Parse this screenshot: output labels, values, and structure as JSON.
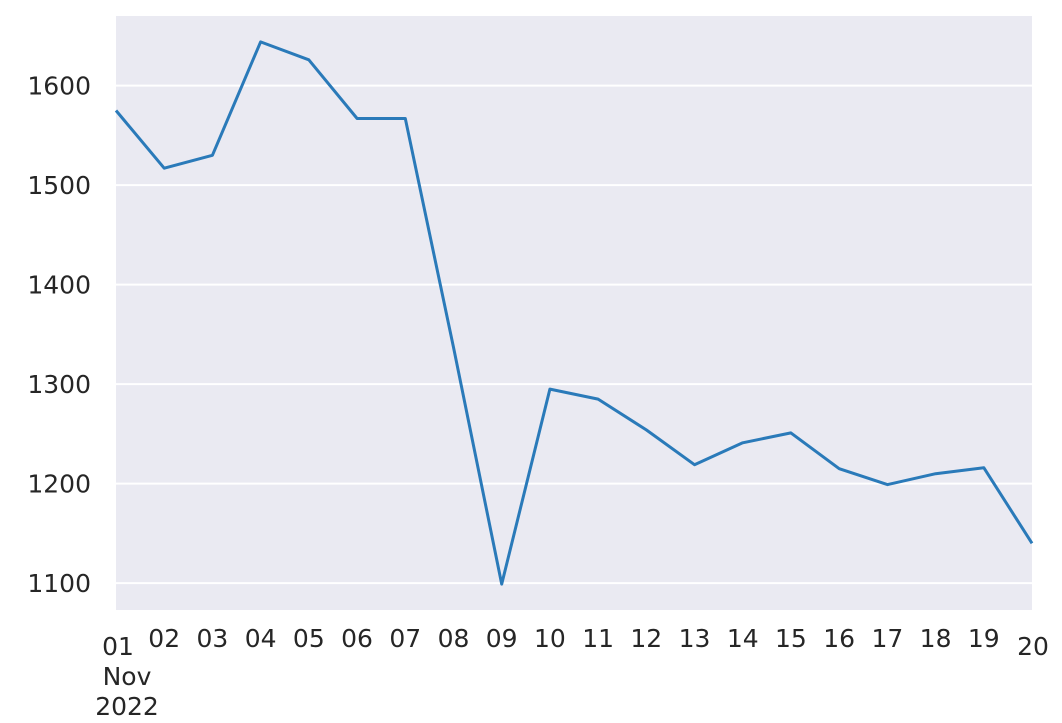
{
  "chart_data": {
    "type": "line",
    "title": "",
    "xlabel": "",
    "ylabel": "",
    "x": [
      "2022-11-01",
      "2022-11-02",
      "2022-11-03",
      "2022-11-04",
      "2022-11-05",
      "2022-11-06",
      "2022-11-07",
      "2022-11-08",
      "2022-11-09",
      "2022-11-10",
      "2022-11-11",
      "2022-11-12",
      "2022-11-13",
      "2022-11-14",
      "2022-11-15",
      "2022-11-16",
      "2022-11-17",
      "2022-11-18",
      "2022-11-19",
      "2022-11-20"
    ],
    "x_tick_labels": [
      "01",
      "02",
      "03",
      "04",
      "05",
      "06",
      "07",
      "08",
      "09",
      "10",
      "11",
      "12",
      "13",
      "14",
      "15",
      "16",
      "17",
      "18",
      "19",
      "20"
    ],
    "x_secondary_label": [
      "Nov",
      "2022"
    ],
    "series": [
      {
        "values": [
          1575,
          1517,
          1530,
          1644,
          1626,
          1567,
          1567,
          1337,
          1099,
          1295,
          1285,
          1254,
          1219,
          1241,
          1251,
          1215,
          1199,
          1210,
          1216,
          1140
        ]
      }
    ],
    "y_ticks": [
      1100,
      1200,
      1300,
      1400,
      1500,
      1600
    ],
    "ylim": [
      1073,
      1670
    ],
    "grid": true,
    "colors": {
      "line": "#2a7ab9",
      "background": "#eaeaf2",
      "grid": "#ffffff"
    }
  }
}
